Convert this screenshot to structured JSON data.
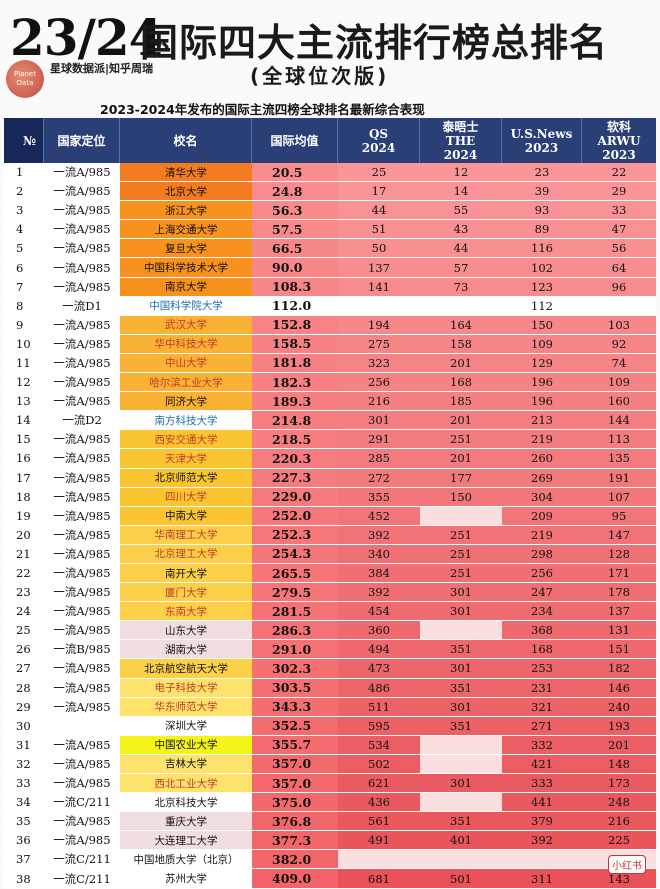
{
  "header": {
    "year": "23/24",
    "title": "国际四大主流排行榜总排名",
    "subtitle": "(全球位次版)",
    "brand": "星球数据派|知乎周瑞",
    "logo_text": "Planet Data",
    "caption": "2023-2024年发布的国际主流四榜全球排名最新综合表现"
  },
  "columns": {
    "rank": "№",
    "type": "国家定位",
    "school": "校名",
    "avg": "国际均值",
    "qs": [
      "QS",
      "2024"
    ],
    "the": [
      "泰晤士",
      "THE",
      "2024"
    ],
    "us": [
      "U.S.News",
      "2023"
    ],
    "arwu": [
      "软科",
      "ARWU",
      "2023"
    ]
  },
  "rows": [
    {
      "rank": "1",
      "type": "一流A/985",
      "school": "清华大学",
      "avg": "20.5",
      "qs": "25",
      "the": "12",
      "us": "23",
      "arwu": "22",
      "school_bg": "#f47c20",
      "school_color": "#111"
    },
    {
      "rank": "2",
      "type": "一流A/985",
      "school": "北京大学",
      "avg": "24.8",
      "qs": "17",
      "the": "14",
      "us": "39",
      "arwu": "29",
      "school_bg": "#f47c20",
      "school_color": "#111"
    },
    {
      "rank": "3",
      "type": "一流A/985",
      "school": "浙江大学",
      "avg": "56.3",
      "qs": "44",
      "the": "55",
      "us": "93",
      "arwu": "33",
      "school_bg": "#f7921e",
      "school_color": "#111"
    },
    {
      "rank": "4",
      "type": "一流A/985",
      "school": "上海交通大学",
      "avg": "57.5",
      "qs": "51",
      "the": "43",
      "us": "89",
      "arwu": "47",
      "school_bg": "#f7921e",
      "school_color": "#111"
    },
    {
      "rank": "5",
      "type": "一流A/985",
      "school": "复旦大学",
      "avg": "66.5",
      "qs": "50",
      "the": "44",
      "us": "116",
      "arwu": "56",
      "school_bg": "#f7921e",
      "school_color": "#111"
    },
    {
      "rank": "6",
      "type": "一流A/985",
      "school": "中国科学技术大学",
      "avg": "90.0",
      "qs": "137",
      "the": "57",
      "us": "102",
      "arwu": "64",
      "school_bg": "#f7921e",
      "school_color": "#111"
    },
    {
      "rank": "7",
      "type": "一流A/985",
      "school": "南京大学",
      "avg": "108.3",
      "qs": "141",
      "the": "73",
      "us": "123",
      "arwu": "96",
      "school_bg": "#f7921e",
      "school_color": "#111"
    },
    {
      "rank": "8",
      "type": "一流D1",
      "school": "中国科学院大学",
      "avg": "112.0",
      "qs": "",
      "the": "",
      "us": "112",
      "arwu": "",
      "school_bg": "#ffffff",
      "school_color": "#1a6fb0",
      "blank": true
    },
    {
      "rank": "9",
      "type": "一流A/985",
      "school": "武汉大学",
      "avg": "152.8",
      "qs": "194",
      "the": "164",
      "us": "150",
      "arwu": "103",
      "school_bg": "#f9b233",
      "school_color": "#c0392b"
    },
    {
      "rank": "10",
      "type": "一流A/985",
      "school": "华中科技大学",
      "avg": "158.5",
      "qs": "275",
      "the": "158",
      "us": "109",
      "arwu": "92",
      "school_bg": "#f9b233",
      "school_color": "#c0392b"
    },
    {
      "rank": "11",
      "type": "一流A/985",
      "school": "中山大学",
      "avg": "181.8",
      "qs": "323",
      "the": "201",
      "us": "129",
      "arwu": "74",
      "school_bg": "#f9b233",
      "school_color": "#c0392b"
    },
    {
      "rank": "12",
      "type": "一流A/985",
      "school": "哈尔滨工业大学",
      "avg": "182.3",
      "qs": "256",
      "the": "168",
      "us": "196",
      "arwu": "109",
      "school_bg": "#f9b233",
      "school_color": "#c0392b"
    },
    {
      "rank": "13",
      "type": "一流A/985",
      "school": "同济大学",
      "avg": "189.3",
      "qs": "216",
      "the": "185",
      "us": "196",
      "arwu": "160",
      "school_bg": "#f9b233",
      "school_color": "#111"
    },
    {
      "rank": "14",
      "type": "一流D2",
      "school": "南方科技大学",
      "avg": "214.8",
      "qs": "301",
      "the": "201",
      "us": "213",
      "arwu": "144",
      "school_bg": "#ffffff",
      "school_color": "#1a6fb0"
    },
    {
      "rank": "15",
      "type": "一流A/985",
      "school": "西安交通大学",
      "avg": "218.5",
      "qs": "291",
      "the": "251",
      "us": "219",
      "arwu": "113",
      "school_bg": "#fbc531",
      "school_color": "#c0392b"
    },
    {
      "rank": "16",
      "type": "一流A/985",
      "school": "天津大学",
      "avg": "220.3",
      "qs": "285",
      "the": "201",
      "us": "260",
      "arwu": "135",
      "school_bg": "#fbc531",
      "school_color": "#c0392b"
    },
    {
      "rank": "17",
      "type": "一流A/985",
      "school": "北京师范大学",
      "avg": "227.3",
      "qs": "272",
      "the": "177",
      "us": "269",
      "arwu": "191",
      "school_bg": "#fbc531",
      "school_color": "#111"
    },
    {
      "rank": "18",
      "type": "一流A/985",
      "school": "四川大学",
      "avg": "229.0",
      "qs": "355",
      "the": "150",
      "us": "304",
      "arwu": "107",
      "school_bg": "#fbc531",
      "school_color": "#c0392b"
    },
    {
      "rank": "19",
      "type": "一流A/985",
      "school": "中南大学",
      "avg": "252.0",
      "qs": "452",
      "the": "",
      "us": "209",
      "arwu": "95",
      "school_bg": "#fbc531",
      "school_color": "#111"
    },
    {
      "rank": "20",
      "type": "一流A/985",
      "school": "华南理工大学",
      "avg": "252.3",
      "qs": "392",
      "the": "251",
      "us": "219",
      "arwu": "147",
      "school_bg": "#fdd049",
      "school_color": "#c0392b"
    },
    {
      "rank": "21",
      "type": "一流A/985",
      "school": "北京理工大学",
      "avg": "254.3",
      "qs": "340",
      "the": "251",
      "us": "298",
      "arwu": "128",
      "school_bg": "#fdd049",
      "school_color": "#c0392b"
    },
    {
      "rank": "22",
      "type": "一流A/985",
      "school": "南开大学",
      "avg": "265.5",
      "qs": "384",
      "the": "251",
      "us": "256",
      "arwu": "171",
      "school_bg": "#fdd049",
      "school_color": "#111"
    },
    {
      "rank": "23",
      "type": "一流A/985",
      "school": "厦门大学",
      "avg": "279.5",
      "qs": "392",
      "the": "301",
      "us": "247",
      "arwu": "178",
      "school_bg": "#fdd049",
      "school_color": "#c0392b"
    },
    {
      "rank": "24",
      "type": "一流A/985",
      "school": "东南大学",
      "avg": "281.5",
      "qs": "454",
      "the": "301",
      "us": "234",
      "arwu": "137",
      "school_bg": "#fdd049",
      "school_color": "#c0392b"
    },
    {
      "rank": "25",
      "type": "一流A/985",
      "school": "山东大学",
      "avg": "286.3",
      "qs": "360",
      "the": "",
      "us": "368",
      "arwu": "131",
      "school_bg": "#f1dce0",
      "school_color": "#111"
    },
    {
      "rank": "26",
      "type": "一流B/985",
      "school": "湖南大学",
      "avg": "291.0",
      "qs": "494",
      "the": "351",
      "us": "168",
      "arwu": "151",
      "school_bg": "#f1dce0",
      "school_color": "#111"
    },
    {
      "rank": "27",
      "type": "一流A/985",
      "school": "北京航空航天大学",
      "avg": "302.3",
      "qs": "473",
      "the": "301",
      "us": "253",
      "arwu": "182",
      "school_bg": "#fdd049",
      "school_color": "#111"
    },
    {
      "rank": "28",
      "type": "一流A/985",
      "school": "电子科技大学",
      "avg": "303.5",
      "qs": "486",
      "the": "351",
      "us": "231",
      "arwu": "146",
      "school_bg": "#fde36b",
      "school_color": "#c0392b"
    },
    {
      "rank": "29",
      "type": "一流A/985",
      "school": "华东师范大学",
      "avg": "343.3",
      "qs": "511",
      "the": "301",
      "us": "321",
      "arwu": "240",
      "school_bg": "#fde36b",
      "school_color": "#c0392b"
    },
    {
      "rank": "30",
      "type": "",
      "school": "深圳大学",
      "avg": "352.5",
      "qs": "595",
      "the": "351",
      "us": "271",
      "arwu": "193",
      "school_bg": "#ffffff",
      "school_color": "#111"
    },
    {
      "rank": "31",
      "type": "一流A/985",
      "school": "中国农业大学",
      "avg": "355.7",
      "qs": "534",
      "the": "",
      "us": "332",
      "arwu": "201",
      "school_bg": "#f4f41a",
      "school_color": "#111"
    },
    {
      "rank": "32",
      "type": "一流A/985",
      "school": "吉林大学",
      "avg": "357.0",
      "qs": "502",
      "the": "",
      "us": "421",
      "arwu": "148",
      "school_bg": "#fde36b",
      "school_color": "#111"
    },
    {
      "rank": "33",
      "type": "一流A/985",
      "school": "西北工业大学",
      "avg": "357.0",
      "qs": "621",
      "the": "301",
      "us": "333",
      "arwu": "173",
      "school_bg": "#fde36b",
      "school_color": "#c0392b"
    },
    {
      "rank": "34",
      "type": "一流C/211",
      "school": "北京科技大学",
      "avg": "375.0",
      "qs": "436",
      "the": "",
      "us": "441",
      "arwu": "248",
      "school_bg": "#ffffff",
      "school_color": "#111"
    },
    {
      "rank": "35",
      "type": "一流A/985",
      "school": "重庆大学",
      "avg": "376.8",
      "qs": "561",
      "the": "351",
      "us": "379",
      "arwu": "216",
      "school_bg": "#f1dce0",
      "school_color": "#111"
    },
    {
      "rank": "36",
      "type": "一流A/985",
      "school": "大连理工大学",
      "avg": "377.3",
      "qs": "491",
      "the": "401",
      "us": "392",
      "arwu": "225",
      "school_bg": "#f1dce0",
      "school_color": "#111"
    },
    {
      "rank": "37",
      "type": "一流C/211",
      "school": "中国地质大学（北京）",
      "avg": "382.0",
      "qs": "",
      "the": "",
      "us": "",
      "arwu": "",
      "school_bg": "#ffffff",
      "school_color": "#111"
    },
    {
      "rank": "38",
      "type": "一流C/211",
      "school": "苏州大学",
      "avg": "409.0",
      "qs": "681",
      "the": "501",
      "us": "311",
      "arwu": "143",
      "school_bg": "#ffffff",
      "school_color": "#111"
    }
  ],
  "watermark": "小红书",
  "colors": {
    "header_bg": "#2b3f77",
    "rank_header_bg": "#17275a",
    "pink_row": "#f4a6a9",
    "deep_red": "#e8545a"
  }
}
